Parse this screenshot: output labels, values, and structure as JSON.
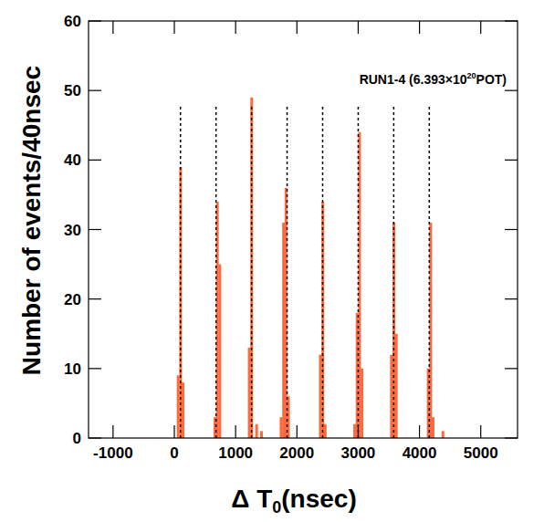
{
  "chart_data": {
    "type": "histogram",
    "y_label": "Number of events/40nsec",
    "x_label": [
      "Δ T",
      "0",
      "(nsec)"
    ],
    "annotation": [
      "RUN1-4 (6.393×10",
      "20",
      "POT)"
    ],
    "color": "#ff6a3d",
    "bins": [
      0,
      40,
      80,
      120,
      160,
      200,
      240,
      280,
      320,
      360,
      400,
      440,
      480,
      520,
      560,
      600,
      640,
      680,
      720,
      760,
      800,
      840,
      880,
      920,
      960,
      1000,
      1040,
      1080,
      1120,
      1160,
      1200,
      1240,
      1280,
      1320,
      1360,
      1400,
      1440,
      1480,
      1520,
      1560,
      1600,
      1640,
      1680,
      1720,
      1760,
      1800,
      1840,
      1880,
      1920,
      1960,
      2000,
      2040,
      2080,
      2120,
      2160,
      2200,
      2240,
      2280,
      2320,
      2360,
      2400,
      2440,
      2480,
      2520,
      2560,
      2600,
      2640,
      2680,
      2720,
      2760,
      2800,
      2840,
      2880,
      2920,
      2960,
      3000,
      3040,
      3080,
      3120,
      3160,
      3200,
      3240,
      3280,
      3320,
      3360,
      3400,
      3440,
      3480,
      3520,
      3560,
      3600,
      3640,
      3680,
      3720,
      3760,
      3800,
      3840,
      3880,
      3920,
      3960,
      4000,
      4040,
      4080,
      4120,
      4160,
      4200,
      4240,
      4280,
      4320,
      4360,
      4400,
      4440
    ],
    "values": [
      0,
      9,
      39,
      8,
      0,
      0,
      0,
      0,
      0,
      0,
      0,
      0,
      0,
      0,
      0,
      0,
      3,
      34,
      25,
      0,
      0,
      0,
      0,
      0,
      0,
      0,
      0,
      0,
      0,
      0,
      13,
      49,
      0,
      2,
      0,
      1,
      0,
      0,
      0,
      0,
      0,
      0,
      0,
      3,
      31,
      36,
      6,
      0,
      0,
      0,
      0,
      0,
      0,
      0,
      0,
      0,
      0,
      0,
      0,
      12,
      34,
      2,
      0,
      0,
      0,
      0,
      0,
      0,
      0,
      0,
      0,
      0,
      0,
      2,
      18,
      44,
      10,
      0,
      0,
      0,
      0,
      0,
      0,
      0,
      0,
      0,
      0,
      0,
      12,
      31,
      15,
      0,
      0,
      0,
      0,
      0,
      0,
      0,
      0,
      0,
      0,
      0,
      0,
      10,
      31,
      3,
      0,
      0,
      0,
      1,
      0
    ],
    "bunch_centers": [
      100,
      680,
      1260,
      1840,
      2420,
      3000,
      3580,
      4160
    ],
    "bunch_line_height": 48,
    "xlim": [
      -1400,
      5600
    ],
    "ylim": [
      0,
      60
    ],
    "xticks": [
      -1000,
      0,
      1000,
      2000,
      3000,
      4000,
      5000
    ],
    "yticks": [
      0,
      10,
      20,
      30,
      40,
      50,
      60
    ],
    "grid": false
  }
}
